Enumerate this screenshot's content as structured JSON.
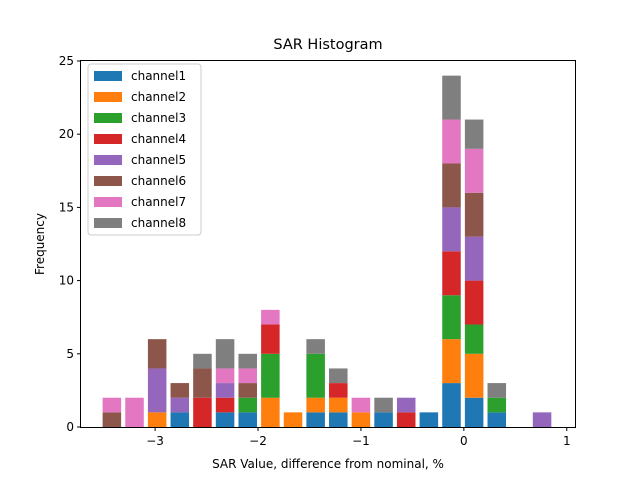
{
  "chart_data": {
    "type": "bar",
    "stacked": true,
    "title": "SAR Histogram",
    "xlabel": "SAR Value, difference from nominal, %",
    "ylabel": "Frequency",
    "xlim": [
      -3.72,
      1.08
    ],
    "ylim": [
      0,
      25
    ],
    "xticks": [
      -3,
      -2,
      -1,
      0,
      1
    ],
    "xtick_labels": [
      "−3",
      "−2",
      "−1",
      "0",
      "1"
    ],
    "yticks": [
      0,
      5,
      10,
      15,
      20,
      25
    ],
    "ytick_labels": [
      "0",
      "5",
      "10",
      "15",
      "20",
      "25"
    ],
    "grid": false,
    "legend_position": "top-left",
    "bin_centers": [
      -3.42,
      -3.2,
      -2.98,
      -2.76,
      -2.54,
      -2.32,
      -2.1,
      -1.88,
      -1.66,
      -1.44,
      -1.22,
      -1.0,
      -0.78,
      -0.56,
      -0.34,
      -0.12,
      0.1,
      0.32,
      0.54,
      0.76
    ],
    "bar_width": 0.18,
    "series": [
      {
        "name": "channel1",
        "color": "#1f77b4",
        "values": [
          0,
          0,
          0,
          1,
          0,
          1,
          1,
          0,
          0,
          1,
          1,
          0,
          1,
          0,
          1,
          3,
          2,
          1,
          0,
          0
        ]
      },
      {
        "name": "channel2",
        "color": "#ff7f0e",
        "values": [
          0,
          0,
          1,
          0,
          0,
          0,
          0,
          2,
          1,
          1,
          1,
          1,
          0,
          0,
          0,
          3,
          3,
          0,
          0,
          0
        ]
      },
      {
        "name": "channel3",
        "color": "#2ca02c",
        "values": [
          0,
          0,
          0,
          0,
          0,
          0,
          1,
          3,
          0,
          3,
          0,
          0,
          0,
          0,
          0,
          3,
          2,
          1,
          0,
          0
        ]
      },
      {
        "name": "channel4",
        "color": "#d62728",
        "values": [
          0,
          0,
          0,
          0,
          2,
          1,
          0,
          2,
          0,
          0,
          1,
          0,
          0,
          1,
          0,
          3,
          3,
          0,
          0,
          0
        ]
      },
      {
        "name": "channel5",
        "color": "#9467bd",
        "values": [
          0,
          0,
          3,
          1,
          0,
          1,
          0,
          0,
          0,
          0,
          0,
          0,
          0,
          1,
          0,
          3,
          3,
          0,
          0,
          1
        ]
      },
      {
        "name": "channel6",
        "color": "#8c564b",
        "values": [
          1,
          0,
          2,
          1,
          2,
          0,
          1,
          0,
          0,
          0,
          0,
          0,
          0,
          0,
          0,
          3,
          3,
          0,
          0,
          0
        ]
      },
      {
        "name": "channel7",
        "color": "#e377c2",
        "values": [
          1,
          2,
          0,
          0,
          0,
          1,
          1,
          1,
          0,
          0,
          0,
          1,
          0,
          0,
          0,
          3,
          3,
          0,
          0,
          0
        ]
      },
      {
        "name": "channel8",
        "color": "#7f7f7f",
        "values": [
          0,
          0,
          0,
          0,
          1,
          2,
          1,
          0,
          0,
          1,
          1,
          0,
          1,
          0,
          0,
          3,
          2,
          1,
          0,
          0
        ]
      }
    ]
  }
}
